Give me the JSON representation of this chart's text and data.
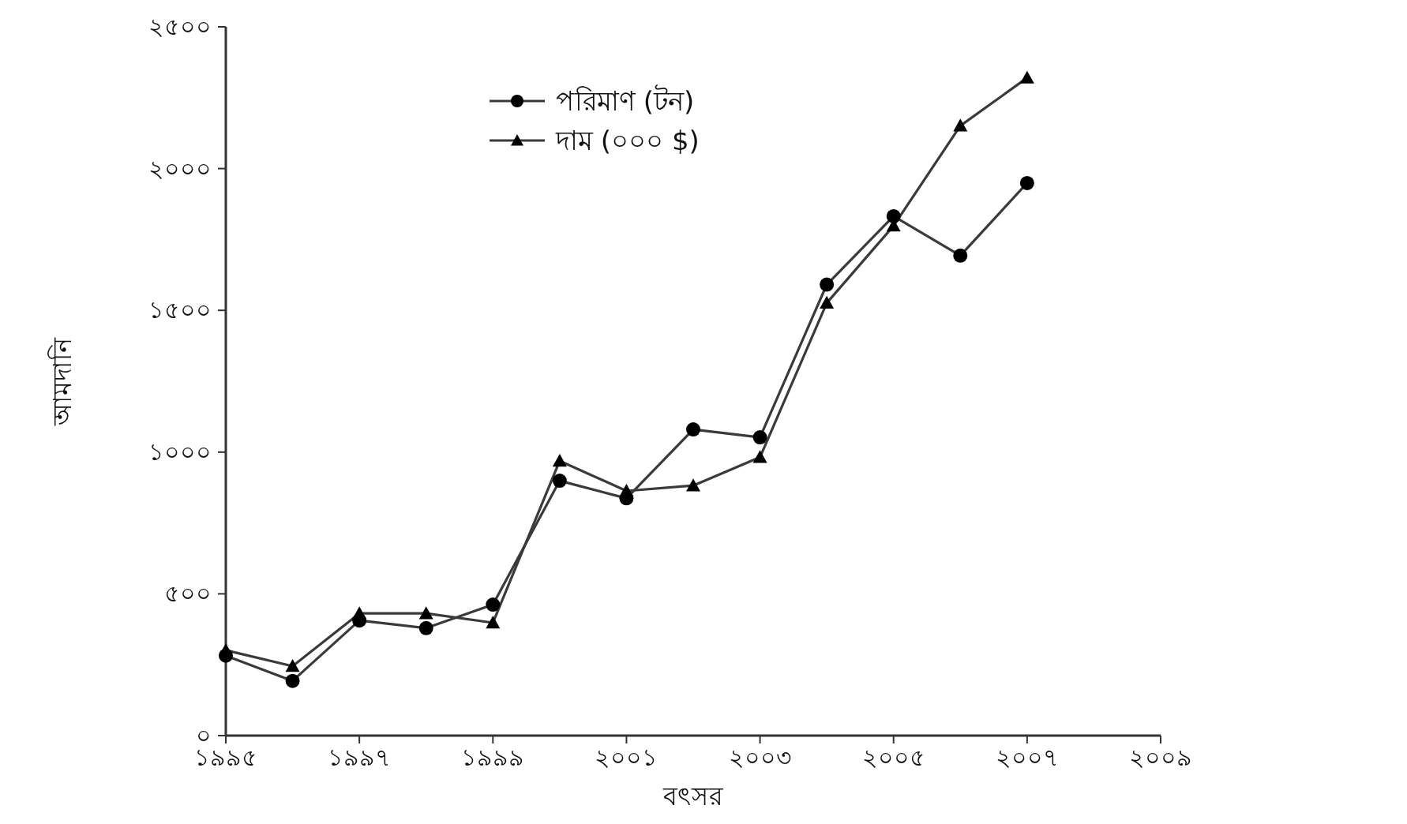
{
  "chart_data": {
    "type": "line",
    "xlabel": "বৎসর",
    "ylabel": "আমদানি",
    "x": [
      1995,
      1996,
      1997,
      1998,
      1999,
      2000,
      2001,
      2002,
      2003,
      2004,
      2005,
      2006,
      2007
    ],
    "series": [
      {
        "name": "পরিমাণ (টন)",
        "color": "#3a3a3a",
        "marker": "circle",
        "values": [
          282,
          193,
          406,
          379,
          462,
          899,
          837,
          1080,
          1052,
          1591,
          1832,
          1693,
          1949
        ]
      },
      {
        "name": "দাম (০০০ $)",
        "color": "#3a3a3a",
        "marker": "triangle",
        "values": [
          301,
          245,
          431,
          431,
          398,
          969,
          863,
          882,
          982,
          1526,
          1798,
          2151,
          2320
        ]
      }
    ],
    "xlim": [
      1995,
      2009
    ],
    "ylim": [
      0,
      2500
    ],
    "xticks": [
      {
        "value": 1995,
        "label": "১৯৯৫"
      },
      {
        "value": 1997,
        "label": "১৯৯৭"
      },
      {
        "value": 1999,
        "label": "১৯৯৯"
      },
      {
        "value": 2001,
        "label": "২০০১"
      },
      {
        "value": 2003,
        "label": "২০০৩"
      },
      {
        "value": 2005,
        "label": "২০০৫"
      },
      {
        "value": 2007,
        "label": "২০০৭"
      },
      {
        "value": 2009,
        "label": "২০০৯"
      }
    ],
    "yticks": [
      {
        "value": 0,
        "label": "০"
      },
      {
        "value": 500,
        "label": "৫০০"
      },
      {
        "value": 1000,
        "label": "১০০০"
      },
      {
        "value": 1500,
        "label": "১৫০০"
      },
      {
        "value": 2000,
        "label": "২০০০"
      },
      {
        "value": 2500,
        "label": "২৫০০"
      }
    ],
    "legend": "top",
    "grid": false,
    "line_style": "solid"
  }
}
